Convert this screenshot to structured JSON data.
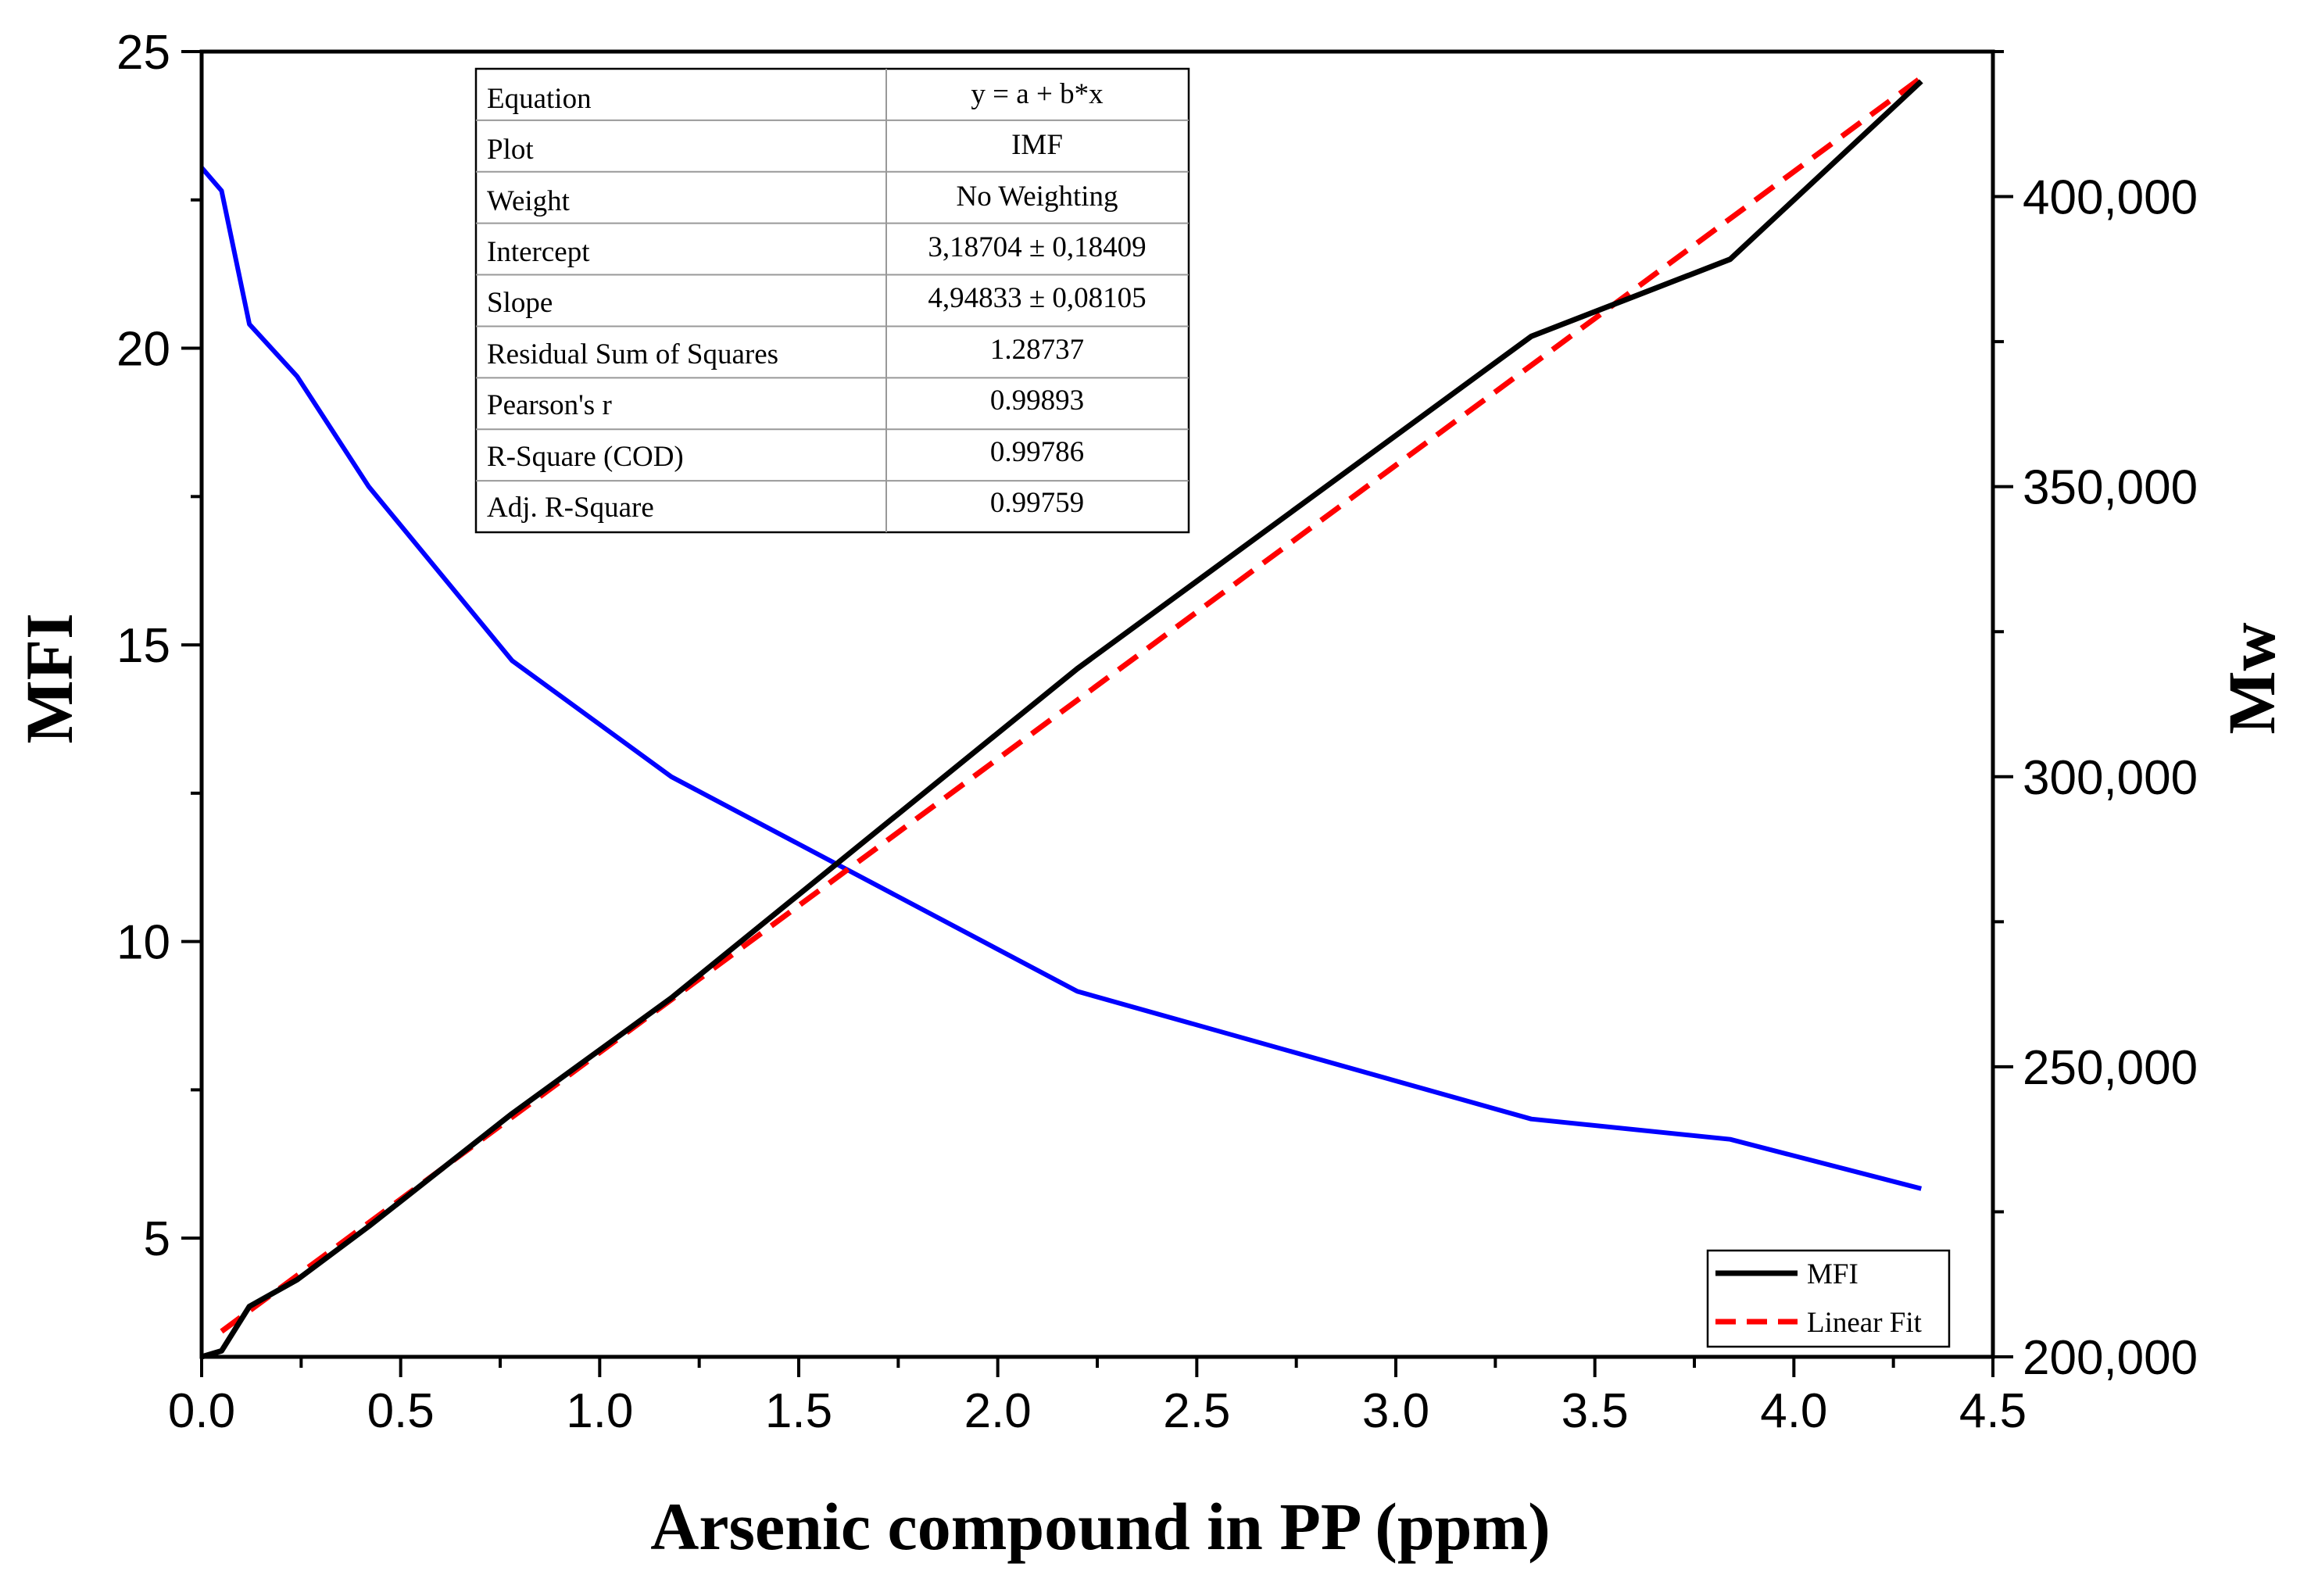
{
  "chart_data": {
    "type": "line",
    "xlabel": "Arsenic compound in PP (ppm)",
    "ylabel": "MFI",
    "y2label": "Mw",
    "xlim": [
      0,
      4.5
    ],
    "ylim": [
      3,
      25
    ],
    "y2lim": [
      200000,
      425000
    ],
    "x_ticks": [
      "0.0",
      "0.5",
      "1.0",
      "1.5",
      "2.0",
      "2.5",
      "3.0",
      "3.5",
      "4.0",
      "4.5"
    ],
    "y_ticks": [
      "5",
      "10",
      "15",
      "20",
      "25"
    ],
    "y2_ticks": [
      "200,000",
      "250,000",
      "300,000",
      "350,000",
      "400,000"
    ],
    "series": [
      {
        "name": "MFI",
        "axis": "left",
        "color": "#000000",
        "style": "solid",
        "x": [
          0,
          0.05,
          0.12,
          0.24,
          0.42,
          0.78,
          1.18,
          2.2,
          3.34,
          3.84,
          4.32
        ],
        "y": [
          3.0,
          3.1,
          3.85,
          4.3,
          5.2,
          7.1,
          9.05,
          14.6,
          20.2,
          21.5,
          24.5
        ]
      },
      {
        "name": "Linear Fit",
        "axis": "left",
        "color": "#ff0000",
        "style": "dashed",
        "x": [
          0.05,
          4.32
        ],
        "y": [
          3.43,
          24.56
        ]
      },
      {
        "name": "Mw",
        "axis": "right",
        "color": "#0000ff",
        "style": "solid",
        "x": [
          0,
          0.05,
          0.12,
          0.24,
          0.42,
          0.78,
          1.18,
          2.2,
          3.34,
          3.84,
          4.32
        ],
        "y": [
          405000,
          401000,
          378000,
          369000,
          350000,
          320000,
          300000,
          263000,
          241000,
          237500,
          229000
        ]
      }
    ],
    "legend": {
      "position": "bottom-right",
      "entries": [
        {
          "label": "MFI",
          "color": "#000000",
          "style": "solid"
        },
        {
          "label": "Linear Fit",
          "color": "#ff0000",
          "style": "dashed"
        }
      ]
    },
    "fit_table": {
      "position": "top-left",
      "rows": [
        {
          "label": "Equation",
          "value": "y = a + b*x"
        },
        {
          "label": "Plot",
          "value": "IMF"
        },
        {
          "label": "Weight",
          "value": "No Weighting"
        },
        {
          "label": "Intercept",
          "value": "3,18704 ± 0,18409"
        },
        {
          "label": "Slope",
          "value": "4,94833 ± 0,08105"
        },
        {
          "label": "Residual Sum of Squares",
          "value": "1.28737"
        },
        {
          "label": "Pearson's r",
          "value": "0.99893"
        },
        {
          "label": "R-Square (COD)",
          "value": "0.99786"
        },
        {
          "label": "Adj. R-Square",
          "value": "0.99759"
        }
      ]
    }
  }
}
